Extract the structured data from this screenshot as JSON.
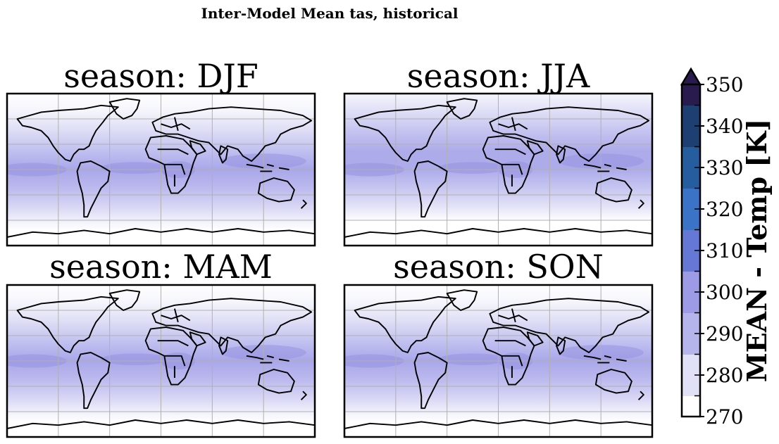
{
  "figure": {
    "suptitle": "Inter-Model Mean tas, historical"
  },
  "chart_data": {
    "type": "heatmap",
    "title": "Inter-Model Mean tas, historical",
    "panels": [
      {
        "title": "season: DJF",
        "season": "DJF"
      },
      {
        "title": "season: JJA",
        "season": "JJA"
      },
      {
        "title": "season: MAM",
        "season": "MAM"
      },
      {
        "title": "season: SON",
        "season": "SON"
      }
    ],
    "colorbar": {
      "label": "MEAN - Temp [K]",
      "ticks": [
        270,
        280,
        290,
        300,
        310,
        320,
        330,
        340,
        350
      ],
      "range": [
        270,
        350
      ],
      "extend": "max",
      "levels_per_tick": 2,
      "colors": [
        "#ffffff",
        "#e0e0f6",
        "#b5b5ec",
        "#9d9be6",
        "#6678d6",
        "#3b73c7",
        "#255d9f",
        "#1d3f72",
        "#2a1b4f"
      ]
    },
    "gridlines": true,
    "projection": "PlateCarree",
    "field_colors": {
      "cold": "#ffffff",
      "mid": "#c9c8f0",
      "warm": "#a8a4e8",
      "hot": "#9c97e4"
    }
  }
}
